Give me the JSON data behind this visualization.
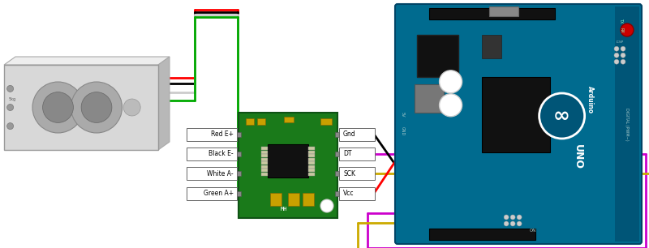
{
  "title": "",
  "bg_color": "#ffffff",
  "figsize": [
    8.0,
    3.06
  ],
  "dpi": 100,
  "wire_colors_lc": [
    "#ff0000",
    "#000000",
    "#cccccc",
    "#00aa00"
  ],
  "wire_labels_lc": [
    "Red E+",
    "Black E-",
    "White A-",
    "Green A+"
  ],
  "wire_colors_hx_ar": [
    "#000000",
    "#cc00cc",
    "#ccaa00",
    "#ff0000"
  ],
  "wire_labels_right": [
    "Gnd",
    "DT",
    "SCK",
    "Vcc"
  ],
  "lc_body_color": "#d8d8d8",
  "lc_top_color": "#eeeeee",
  "lc_side_color": "#b8b8b8",
  "hx_board_color": "#1a7a1a",
  "ar_board_color": "#006B8F",
  "ar_dark_color": "#005577"
}
